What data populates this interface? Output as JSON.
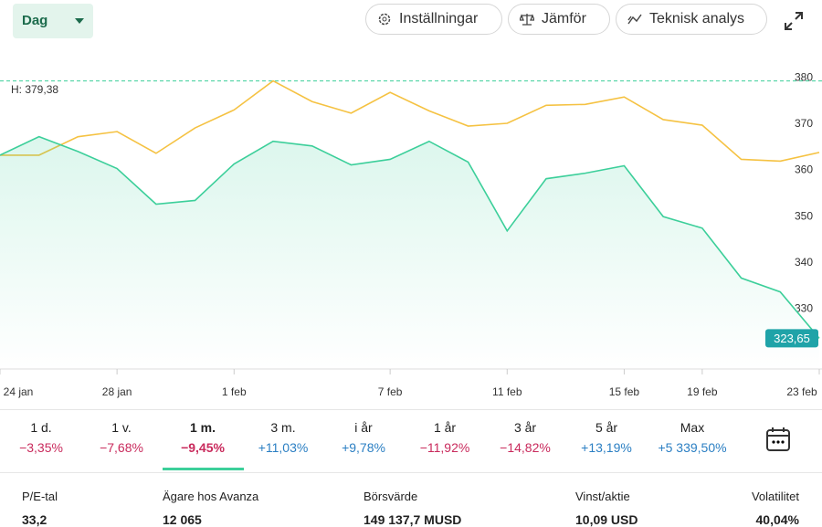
{
  "toolbar": {
    "interval": "Dag",
    "buttons": [
      "Inställningar",
      "Jämför",
      "Teknisk analys"
    ]
  },
  "chart_data": {
    "type": "line",
    "categories": [
      "24 jan",
      null,
      null,
      "28 jan",
      null,
      null,
      "1 feb",
      null,
      null,
      null,
      "7 feb",
      null,
      null,
      "11 feb",
      null,
      null,
      "15 feb",
      null,
      "19 feb",
      null,
      null,
      "23 feb"
    ],
    "series": [
      {
        "color": "#f5c242",
        "values": [
          363.3,
          363.3,
          367.3,
          368.4,
          363.7,
          369.2,
          373.1,
          379.38,
          374.9,
          372.4,
          376.9,
          372.9,
          369.6,
          370.2,
          374.1,
          374.3,
          375.9,
          371.0,
          369.8,
          362.4,
          362.0,
          363.9
        ]
      },
      {
        "color": "#3ccf9a",
        "values": [
          363.3,
          367.3,
          364.1,
          360.4,
          352.7,
          353.5,
          361.4,
          366.3,
          365.3,
          361.2,
          362.4,
          366.3,
          361.8,
          346.9,
          358.2,
          359.4,
          361.0,
          350.0,
          347.5,
          336.7,
          333.7,
          323.65
        ],
        "value_labels": {
          "21": "323,65"
        }
      }
    ],
    "high": {
      "value": 379.38,
      "label": "H: 379,38"
    },
    "ylim": [
      317,
      388
    ],
    "yticks": [
      330,
      340,
      350,
      360,
      370,
      380
    ]
  },
  "periods": [
    {
      "label": "1 d.",
      "change": "−3,35%"
    },
    {
      "label": "1 v.",
      "change": "−7,68%"
    },
    {
      "label": "1 m.",
      "change": "−9,45%"
    },
    {
      "label": "3 m.",
      "change": "+11,03%"
    },
    {
      "label": "i år",
      "change": "+9,78%"
    },
    {
      "label": "1 år",
      "change": "−11,92%"
    },
    {
      "label": "3 år",
      "change": "−14,82%"
    },
    {
      "label": "5 år",
      "change": "+13,19%"
    },
    {
      "label": "Max",
      "change": "+5 339,50%"
    }
  ],
  "stats": [
    {
      "label": "P/E-tal",
      "value": "33,2"
    },
    {
      "label": "Ägare hos Avanza",
      "value": "12 065"
    },
    {
      "label": "Börsvärde",
      "value": "149 137,7 MUSD"
    },
    {
      "label": "Vinst/aktie",
      "value": "10,09 USD"
    },
    {
      "label": "Volatilitet",
      "value": "40,04%"
    }
  ]
}
